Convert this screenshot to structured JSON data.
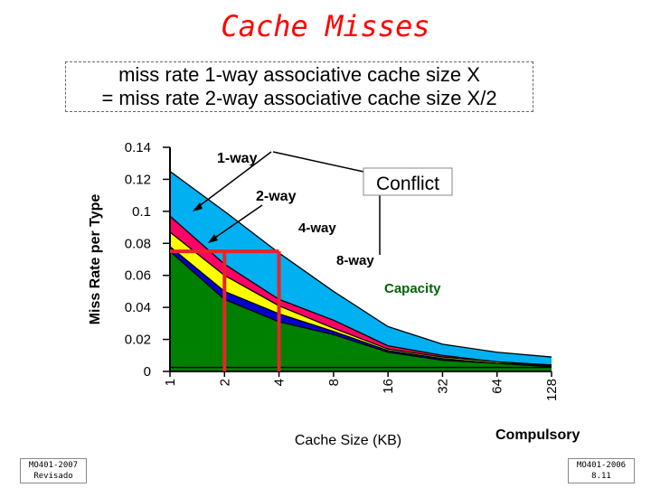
{
  "slide": {
    "title": "Cache Misses",
    "subtitle_line1": "miss rate 1-way associative cache size X",
    "subtitle_line2": "= miss rate 2-way associative cache size X/2",
    "footer_left_line1": "MO401-2007",
    "footer_left_line2": "Revisado",
    "footer_right_line1": "MO401-2006",
    "footer_right_line2": "8.11"
  },
  "chart_data": {
    "type": "area",
    "xlabel": "Cache Size (KB)",
    "ylabel": "Miss Rate per Type",
    "x": [
      "1",
      "2",
      "4",
      "8",
      "16",
      "32",
      "64",
      "128"
    ],
    "ylim": [
      0,
      0.14
    ],
    "yticks": [
      "0",
      "0.02",
      "0.04",
      "0.06",
      "0.08",
      "0.1",
      "0.12",
      "0.14"
    ],
    "series": [
      {
        "name": "Compulsory",
        "color": "#008000",
        "values": [
          0.0025,
          0.0025,
          0.0025,
          0.0025,
          0.0025,
          0.0025,
          0.0025,
          0.0025
        ]
      },
      {
        "name": "Capacity",
        "color": "#008000",
        "values": [
          0.075,
          0.045,
          0.031,
          0.023,
          0.012,
          0.007,
          0.005,
          0.003
        ]
      },
      {
        "name": "8-way",
        "color": "#0000cc",
        "values": [
          0.078,
          0.05,
          0.036,
          0.025,
          0.013,
          0.008,
          0.005,
          0.004
        ]
      },
      {
        "name": "4-way",
        "color": "#ffff00",
        "values": [
          0.087,
          0.06,
          0.041,
          0.027,
          0.014,
          0.009,
          0.006,
          0.004
        ]
      },
      {
        "name": "2-way",
        "color": "#ff0066",
        "values": [
          0.097,
          0.067,
          0.045,
          0.032,
          0.016,
          0.01,
          0.006,
          0.004
        ]
      },
      {
        "name": "1-way",
        "color": "#00b0f0",
        "values": [
          0.125,
          0.1,
          0.074,
          0.05,
          0.028,
          0.017,
          0.012,
          0.009
        ]
      }
    ],
    "labels": {
      "one_way": "1-way",
      "two_way": "2-way",
      "four_way": "4-way",
      "eight_way": "8-way",
      "conflict": "Conflict",
      "capacity": "Capacity",
      "compulsory": "Compulsory"
    },
    "highlight_level": 0.075,
    "highlight_x": [
      "1",
      "2",
      "4"
    ],
    "highlight_color": "#e8242b"
  }
}
